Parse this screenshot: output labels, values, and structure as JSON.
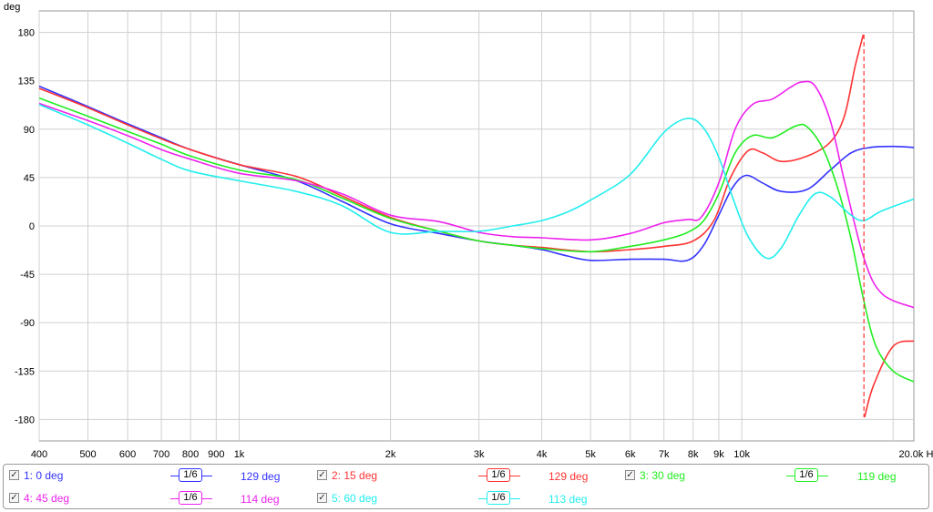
{
  "chart_data": {
    "type": "line",
    "ylabel": "deg",
    "xunit": "Hz",
    "xscale": "log",
    "xlim": [
      400,
      22000
    ],
    "ylim": [
      -200,
      200
    ],
    "yticks": [
      180,
      135,
      90,
      45,
      0,
      -45,
      -90,
      -135,
      -180
    ],
    "xticks": [
      {
        "v": 400,
        "label": "400"
      },
      {
        "v": 500,
        "label": "500"
      },
      {
        "v": 600,
        "label": "600"
      },
      {
        "v": 700,
        "label": "700"
      },
      {
        "v": 800,
        "label": "800"
      },
      {
        "v": 900,
        "label": "900"
      },
      {
        "v": 1000,
        "label": "1k"
      },
      {
        "v": 2000,
        "label": "2k"
      },
      {
        "v": 3000,
        "label": "3k"
      },
      {
        "v": 4000,
        "label": "4k"
      },
      {
        "v": 5000,
        "label": "5k"
      },
      {
        "v": 6000,
        "label": "6k"
      },
      {
        "v": 7000,
        "label": "7k"
      },
      {
        "v": 8000,
        "label": "8k"
      },
      {
        "v": 9000,
        "label": "9k"
      },
      {
        "v": 10000,
        "label": "10k"
      },
      {
        "v": 20000,
        "label": "20.0k Hz"
      }
    ],
    "xgrid": [
      400,
      500,
      600,
      700,
      800,
      900,
      1000,
      2000,
      3000,
      4000,
      5000,
      6000,
      7000,
      8000,
      9000,
      10000,
      20000
    ],
    "grid": true,
    "marker": {
      "x": 17500,
      "color": "#ff3333"
    },
    "series": [
      {
        "name": "1: 0 deg",
        "color": "#3333ff",
        "smoothing": "1/6",
        "value": "129 deg",
        "points": [
          [
            400,
            130
          ],
          [
            500,
            111
          ],
          [
            600,
            95
          ],
          [
            700,
            82
          ],
          [
            800,
            71
          ],
          [
            1000,
            57
          ],
          [
            1300,
            42
          ],
          [
            1600,
            23
          ],
          [
            2000,
            2
          ],
          [
            2500,
            -7
          ],
          [
            3000,
            -14
          ],
          [
            3500,
            -18
          ],
          [
            4000,
            -22
          ],
          [
            4500,
            -28
          ],
          [
            5000,
            -32
          ],
          [
            6000,
            -31
          ],
          [
            7000,
            -31
          ],
          [
            7800,
            -32
          ],
          [
            8400,
            -18
          ],
          [
            9000,
            10
          ],
          [
            9600,
            36
          ],
          [
            10200,
            47
          ],
          [
            11000,
            40
          ],
          [
            12000,
            32
          ],
          [
            13500,
            34
          ],
          [
            15000,
            52
          ],
          [
            16500,
            68
          ],
          [
            18000,
            73
          ],
          [
            20000,
            74
          ],
          [
            22000,
            73
          ]
        ]
      },
      {
        "name": "2: 15 deg",
        "color": "#ff3333",
        "smoothing": "1/6",
        "value": "129 deg",
        "points": [
          [
            400,
            128
          ],
          [
            500,
            110
          ],
          [
            600,
            94
          ],
          [
            700,
            81
          ],
          [
            800,
            71
          ],
          [
            1000,
            57
          ],
          [
            1300,
            46
          ],
          [
            1600,
            28
          ],
          [
            2000,
            8
          ],
          [
            2500,
            -5
          ],
          [
            3000,
            -14
          ],
          [
            3500,
            -18
          ],
          [
            4000,
            -20
          ],
          [
            5000,
            -24
          ],
          [
            6000,
            -22
          ],
          [
            7000,
            -19
          ],
          [
            8000,
            -14
          ],
          [
            8800,
            5
          ],
          [
            9500,
            45
          ],
          [
            10300,
            70
          ],
          [
            11000,
            68
          ],
          [
            12000,
            60
          ],
          [
            13500,
            65
          ],
          [
            15000,
            78
          ],
          [
            16000,
            102
          ],
          [
            16800,
            148
          ],
          [
            17450,
            178
          ],
          [
            17550,
            -178
          ],
          [
            18300,
            -148
          ],
          [
            20000,
            -112
          ],
          [
            22000,
            -107
          ]
        ]
      },
      {
        "name": "3: 30 deg",
        "color": "#22ee22",
        "smoothing": "1/6",
        "value": "119 deg",
        "points": [
          [
            400,
            119
          ],
          [
            500,
            102
          ],
          [
            600,
            88
          ],
          [
            700,
            76
          ],
          [
            800,
            65
          ],
          [
            1000,
            52
          ],
          [
            1300,
            43
          ],
          [
            1600,
            26
          ],
          [
            2000,
            7
          ],
          [
            2500,
            -5
          ],
          [
            3000,
            -14
          ],
          [
            3500,
            -18
          ],
          [
            4000,
            -21
          ],
          [
            5000,
            -24
          ],
          [
            6000,
            -19
          ],
          [
            7000,
            -13
          ],
          [
            7800,
            -6
          ],
          [
            8400,
            5
          ],
          [
            9000,
            30
          ],
          [
            9700,
            68
          ],
          [
            10500,
            84
          ],
          [
            11500,
            82
          ],
          [
            12800,
            93
          ],
          [
            13500,
            92
          ],
          [
            14500,
            72
          ],
          [
            15500,
            36
          ],
          [
            16500,
            -12
          ],
          [
            17500,
            -70
          ],
          [
            18500,
            -112
          ],
          [
            20000,
            -135
          ],
          [
            22000,
            -145
          ]
        ]
      },
      {
        "name": "4: 45 deg",
        "color": "#ee22ee",
        "smoothing": "1/6",
        "value": "114 deg",
        "points": [
          [
            400,
            114
          ],
          [
            500,
            98
          ],
          [
            600,
            84
          ],
          [
            700,
            71
          ],
          [
            800,
            62
          ],
          [
            1000,
            49
          ],
          [
            1300,
            42
          ],
          [
            1600,
            30
          ],
          [
            2000,
            10
          ],
          [
            2500,
            4
          ],
          [
            3000,
            -6
          ],
          [
            3500,
            -10
          ],
          [
            4000,
            -11
          ],
          [
            5000,
            -13
          ],
          [
            6000,
            -7
          ],
          [
            7000,
            3
          ],
          [
            7800,
            6
          ],
          [
            8300,
            8
          ],
          [
            9000,
            40
          ],
          [
            9700,
            90
          ],
          [
            10500,
            113
          ],
          [
            11500,
            118
          ],
          [
            12500,
            129
          ],
          [
            13200,
            134
          ],
          [
            14000,
            130
          ],
          [
            15000,
            98
          ],
          [
            16000,
            42
          ],
          [
            17500,
            -30
          ],
          [
            19000,
            -63
          ],
          [
            22000,
            -76
          ]
        ]
      },
      {
        "name": "5: 60 deg",
        "color": "#22eeee",
        "smoothing": "1/6",
        "value": "113 deg",
        "points": [
          [
            400,
            113
          ],
          [
            500,
            94
          ],
          [
            600,
            77
          ],
          [
            700,
            62
          ],
          [
            800,
            51
          ],
          [
            1000,
            42
          ],
          [
            1300,
            32
          ],
          [
            1600,
            19
          ],
          [
            2000,
            -6
          ],
          [
            2500,
            -5
          ],
          [
            3000,
            -5
          ],
          [
            3500,
            0
          ],
          [
            4000,
            5
          ],
          [
            4500,
            13
          ],
          [
            5000,
            24
          ],
          [
            6000,
            48
          ],
          [
            7000,
            87
          ],
          [
            7800,
            100
          ],
          [
            8400,
            91
          ],
          [
            9000,
            64
          ],
          [
            9600,
            26
          ],
          [
            10300,
            -10
          ],
          [
            11200,
            -30
          ],
          [
            12000,
            -20
          ],
          [
            13000,
            10
          ],
          [
            14000,
            30
          ],
          [
            15000,
            27
          ],
          [
            16500,
            10
          ],
          [
            17500,
            5
          ],
          [
            19000,
            14
          ],
          [
            22000,
            25
          ]
        ]
      }
    ]
  },
  "legend": {
    "items": [
      {
        "label": "1: 0 deg",
        "smoothing": "1/6",
        "value": "129 deg",
        "color": "#3333ff"
      },
      {
        "label": "2: 15 deg",
        "smoothing": "1/6",
        "value": "129 deg",
        "color": "#ff3333"
      },
      {
        "label": "3: 30 deg",
        "smoothing": "1/6",
        "value": "119 deg",
        "color": "#22ee22"
      },
      {
        "label": "4: 45 deg",
        "smoothing": "1/6",
        "value": "114 deg",
        "color": "#ee22ee"
      },
      {
        "label": "5: 60 deg",
        "smoothing": "1/6",
        "value": "113 deg",
        "color": "#22eeee"
      }
    ]
  }
}
